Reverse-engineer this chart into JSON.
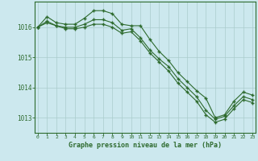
{
  "background_color": "#cce8ee",
  "line_color": "#2d6a2d",
  "grid_color": "#aacccc",
  "title": "Graphe pression niveau de la mer (hPa)",
  "ylim": [
    1012.5,
    1016.85
  ],
  "xlim": [
    -0.3,
    23.3
  ],
  "yticks": [
    1013,
    1014,
    1015,
    1016
  ],
  "xticks": [
    0,
    1,
    2,
    3,
    4,
    5,
    6,
    7,
    8,
    9,
    10,
    11,
    12,
    13,
    14,
    15,
    16,
    17,
    18,
    19,
    20,
    21,
    22,
    23
  ],
  "series1": [
    1016.0,
    1016.35,
    1016.15,
    1016.1,
    1016.1,
    1016.3,
    1016.55,
    1016.55,
    1016.45,
    1016.1,
    1016.05,
    1016.05,
    1015.6,
    1015.2,
    1014.9,
    1014.5,
    1014.2,
    1013.9,
    1013.65,
    1013.0,
    1013.1,
    1013.55,
    1013.85,
    1013.75
  ],
  "series2": [
    1016.0,
    1016.2,
    1016.05,
    1016.0,
    1016.0,
    1016.1,
    1016.25,
    1016.25,
    1016.15,
    1015.9,
    1015.95,
    1015.65,
    1015.25,
    1014.95,
    1014.7,
    1014.3,
    1014.0,
    1013.7,
    1013.25,
    1012.95,
    1013.05,
    1013.4,
    1013.7,
    1013.6
  ],
  "series3": [
    1016.0,
    1016.15,
    1016.05,
    1015.95,
    1015.95,
    1016.0,
    1016.1,
    1016.1,
    1016.0,
    1015.8,
    1015.85,
    1015.55,
    1015.15,
    1014.85,
    1014.55,
    1014.15,
    1013.85,
    1013.55,
    1013.1,
    1012.85,
    1012.95,
    1013.3,
    1013.6,
    1013.5
  ]
}
